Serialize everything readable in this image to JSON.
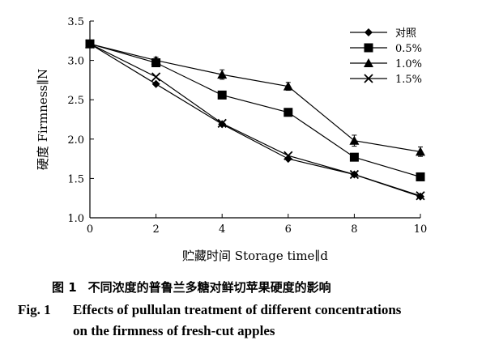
{
  "chart_data": {
    "type": "line",
    "xlabel": "贮藏时间 Storage time∥d",
    "ylabel": "硬度 Firmness∥N",
    "xlim": [
      0,
      10
    ],
    "ylim": [
      1.0,
      3.5
    ],
    "xticks": [
      "0",
      "2",
      "4",
      "6",
      "8",
      "10"
    ],
    "yticks": [
      "1.0",
      "1.5",
      "2.0",
      "2.5",
      "3.0",
      "3.5"
    ],
    "grid": false,
    "legend_position": "top-right",
    "x": [
      0,
      2,
      4,
      6,
      8,
      10
    ],
    "series": [
      {
        "name": "对照",
        "marker": "diamond",
        "values": [
          3.21,
          2.7,
          2.19,
          1.75,
          1.55,
          1.27
        ],
        "errors": [
          0,
          0,
          0,
          0,
          0,
          0
        ]
      },
      {
        "name": "0.5%",
        "marker": "square",
        "values": [
          3.21,
          2.97,
          2.56,
          2.34,
          1.77,
          1.52
        ],
        "errors": [
          0,
          0.04,
          0,
          0,
          0,
          0
        ]
      },
      {
        "name": "1.0%",
        "marker": "triangle",
        "values": [
          3.21,
          3.0,
          2.82,
          2.67,
          1.98,
          1.84
        ],
        "errors": [
          0,
          0.04,
          0.06,
          0.05,
          0.07,
          0.06
        ]
      },
      {
        "name": "1.5%",
        "marker": "x",
        "values": [
          3.21,
          2.79,
          2.2,
          1.79,
          1.55,
          1.28
        ],
        "errors": [
          0,
          0,
          0,
          0,
          0,
          0
        ]
      }
    ]
  },
  "caption": {
    "cn_label": "图 1",
    "cn_text": "不同浓度的普鲁兰多糖对鲜切苹果硬度的影响",
    "en_label": "Fig. 1",
    "en_text_line1": "Effects of pullulan treatment of different concentrations",
    "en_text_line2": "on the firmness of fresh-cut apples"
  }
}
